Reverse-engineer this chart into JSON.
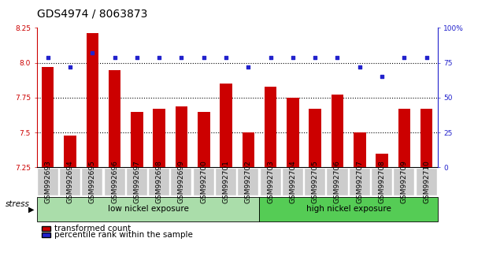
{
  "title": "GDS4974 / 8063873",
  "samples": [
    "GSM992693",
    "GSM992694",
    "GSM992695",
    "GSM992696",
    "GSM992697",
    "GSM992698",
    "GSM992699",
    "GSM992700",
    "GSM992701",
    "GSM992702",
    "GSM992703",
    "GSM992704",
    "GSM992705",
    "GSM992706",
    "GSM992707",
    "GSM992708",
    "GSM992709",
    "GSM992710"
  ],
  "red_values": [
    7.97,
    7.48,
    8.21,
    7.95,
    7.65,
    7.67,
    7.69,
    7.65,
    7.85,
    7.5,
    7.83,
    7.75,
    7.67,
    7.77,
    7.5,
    7.35,
    7.67,
    7.67
  ],
  "blue_values": [
    79,
    72,
    82,
    79,
    79,
    79,
    79,
    79,
    79,
    72,
    79,
    79,
    79,
    79,
    72,
    65,
    79,
    79
  ],
  "ylim_left": [
    7.25,
    8.25
  ],
  "ylim_right": [
    0,
    100
  ],
  "yticks_left": [
    7.25,
    7.5,
    7.75,
    8.0,
    8.25
  ],
  "yticks_right": [
    0,
    25,
    50,
    75,
    100
  ],
  "grid_values": [
    7.5,
    7.75,
    8.0
  ],
  "group1_label": "low nickel exposure",
  "group2_label": "high nickel exposure",
  "group1_count": 10,
  "group2_count": 8,
  "stress_label": "stress",
  "legend1": "transformed count",
  "legend2": "percentile rank within the sample",
  "red_color": "#cc0000",
  "blue_color": "#2222cc",
  "group1_color": "#aaddaa",
  "group2_color": "#55cc55",
  "bar_width": 0.55,
  "title_fontsize": 10,
  "tick_fontsize": 6.5,
  "label_fontsize": 7.5,
  "xtick_bg_color": "#cccccc"
}
